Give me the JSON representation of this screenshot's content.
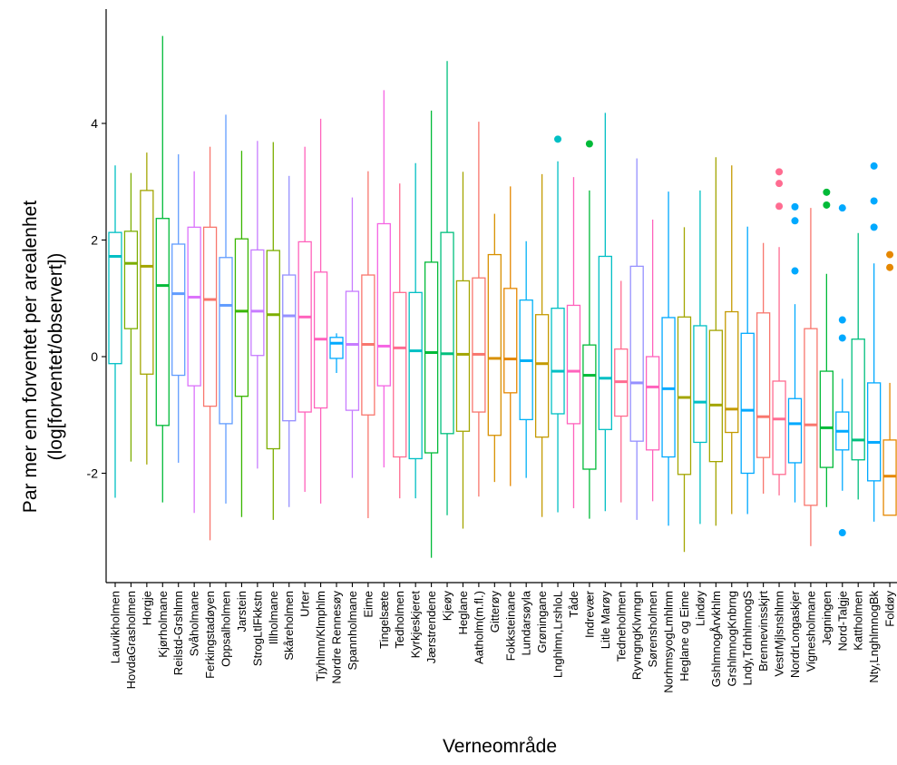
{
  "chart_data": {
    "type": "boxplot",
    "title": "",
    "xlabel": "Verneområde",
    "ylabel_line1": "Par mer enn forventet per arealenhet",
    "ylabel_line2": "(log[forventet/observert])",
    "ylim": [
      -3.85,
      5.9
    ],
    "yticks": [
      -2,
      0,
      2,
      4
    ],
    "ytick_labels": [
      "-2",
      "0",
      "2",
      "4"
    ],
    "legend": "none",
    "grid": false,
    "groups": [
      {
        "name": "Lauvikholmen",
        "color": "#F8766D",
        "stroke": "#00BFC4",
        "min": -2.42,
        "q1": -0.12,
        "median": 1.72,
        "q3": 2.13,
        "max": 3.28,
        "outliers": []
      },
      {
        "name": "HovdaGrasholmen",
        "color": "#7CAE00",
        "min": -1.8,
        "q1": 0.48,
        "median": 1.6,
        "q3": 2.15,
        "max": 3.15,
        "outliers": []
      },
      {
        "name": "Horgje",
        "color": "#A3A500",
        "min": -1.85,
        "q1": -0.3,
        "median": 1.55,
        "q3": 2.85,
        "max": 3.5,
        "outliers": []
      },
      {
        "name": "Kjørholmane",
        "color": "#00BA38",
        "min": -2.5,
        "q1": -1.18,
        "median": 1.22,
        "q3": 2.37,
        "max": 5.5,
        "outliers": []
      },
      {
        "name": "Reilstd-Grshlmn",
        "color": "#619CFF",
        "min": -1.82,
        "q1": -0.32,
        "median": 1.08,
        "q3": 1.93,
        "max": 3.47,
        "outliers": []
      },
      {
        "name": "Svåholmane",
        "color": "#DB72FB",
        "min": -2.68,
        "q1": -0.5,
        "median": 1.02,
        "q3": 2.22,
        "max": 3.18,
        "outliers": []
      },
      {
        "name": "Ferkingstadøyen",
        "color": "#F8766D",
        "min": -3.15,
        "q1": -0.85,
        "median": 0.98,
        "q3": 2.22,
        "max": 3.6,
        "outliers": []
      },
      {
        "name": "Oppsalholmen",
        "color": "#619CFF",
        "min": -2.52,
        "q1": -1.15,
        "median": 0.88,
        "q3": 1.7,
        "max": 4.15,
        "outliers": []
      },
      {
        "name": "Jarstein",
        "color": "#39B600",
        "min": -2.75,
        "q1": -0.68,
        "median": 0.78,
        "q3": 2.02,
        "max": 3.53,
        "outliers": []
      },
      {
        "name": "StrogLtlFkkstn",
        "color": "#C77CFF",
        "min": -1.92,
        "q1": 0.02,
        "median": 0.78,
        "q3": 1.83,
        "max": 3.7,
        "outliers": []
      },
      {
        "name": "Illholmane",
        "color": "#7CAE00",
        "min": -2.8,
        "q1": -1.58,
        "median": 0.72,
        "q3": 1.82,
        "max": 3.68,
        "outliers": []
      },
      {
        "name": "Skåreholmen",
        "color": "#9590FF",
        "min": -2.58,
        "q1": -1.1,
        "median": 0.7,
        "q3": 1.4,
        "max": 3.1,
        "outliers": []
      },
      {
        "name": "Urter",
        "color": "#FF62BC",
        "min": -2.32,
        "q1": -0.95,
        "median": 0.68,
        "q3": 1.97,
        "max": 3.6,
        "outliers": []
      },
      {
        "name": "Tjyhlmn/Klmphlm",
        "color": "#FF62BC",
        "min": -2.52,
        "q1": -0.88,
        "median": 0.3,
        "q3": 1.45,
        "max": 4.08,
        "outliers": []
      },
      {
        "name": "Nordre Rennesøy",
        "color": "#00A9FF",
        "min": -0.28,
        "q1": -0.03,
        "median": 0.23,
        "q3": 0.33,
        "max": 0.4,
        "outliers": []
      },
      {
        "name": "Spannholmane",
        "color": "#C77CFF",
        "min": -2.08,
        "q1": -0.92,
        "median": 0.21,
        "q3": 1.12,
        "max": 2.73,
        "outliers": []
      },
      {
        "name": "Eime",
        "color": "#F8766D",
        "min": -2.77,
        "q1": -1.0,
        "median": 0.21,
        "q3": 1.4,
        "max": 3.18,
        "outliers": []
      },
      {
        "name": "Tingelsæte",
        "color": "#F564E3",
        "min": -1.9,
        "q1": -0.5,
        "median": 0.18,
        "q3": 2.28,
        "max": 4.57,
        "outliers": []
      },
      {
        "name": "Tedholmen",
        "color": "#FF6C91",
        "min": -2.43,
        "q1": -1.72,
        "median": 0.15,
        "q3": 1.1,
        "max": 2.97,
        "outliers": []
      },
      {
        "name": "Kyrkjeskjeret",
        "color": "#00BFC4",
        "min": -2.43,
        "q1": -1.75,
        "median": 0.1,
        "q3": 1.1,
        "max": 3.32,
        "outliers": []
      },
      {
        "name": "Jærstrendene",
        "color": "#00BA38",
        "min": -3.45,
        "q1": -1.65,
        "median": 0.07,
        "q3": 1.62,
        "max": 4.22,
        "outliers": []
      },
      {
        "name": "Kjeøy",
        "color": "#00BF7D",
        "min": -2.72,
        "q1": -1.32,
        "median": 0.05,
        "q3": 2.13,
        "max": 5.07,
        "outliers": []
      },
      {
        "name": "Heglane",
        "color": "#A3A500",
        "min": -2.95,
        "q1": -1.28,
        "median": 0.04,
        "q3": 1.3,
        "max": 3.17,
        "outliers": []
      },
      {
        "name": "Aatholm(m.fl.)",
        "color": "#F8766D",
        "min": -2.4,
        "q1": -0.95,
        "median": 0.04,
        "q3": 1.35,
        "max": 4.03,
        "outliers": []
      },
      {
        "name": "Gitterøy",
        "color": "#D89000",
        "min": -2.15,
        "q1": -1.35,
        "median": -0.03,
        "q3": 1.75,
        "max": 2.45,
        "outliers": []
      },
      {
        "name": "Fokksteinane",
        "color": "#E58700",
        "min": -2.22,
        "q1": -0.62,
        "median": -0.04,
        "q3": 1.17,
        "max": 2.92,
        "outliers": []
      },
      {
        "name": "Lundarsøyla",
        "color": "#00B0F6",
        "min": -2.08,
        "q1": -1.08,
        "median": -0.07,
        "q3": 0.97,
        "max": 1.98,
        "outliers": []
      },
      {
        "name": "Grøningane",
        "color": "#C49A00",
        "min": -2.75,
        "q1": -1.38,
        "median": -0.12,
        "q3": 0.72,
        "max": 3.13,
        "outliers": []
      },
      {
        "name": "Lnghlmn,LrshloL",
        "color": "#00BFC4",
        "min": -2.67,
        "q1": -0.98,
        "median": -0.25,
        "q3": 0.83,
        "max": 3.35,
        "outliers": [
          3.73
        ]
      },
      {
        "name": "Tåde",
        "color": "#FF62BC",
        "min": -2.6,
        "q1": -1.15,
        "median": -0.25,
        "q3": 0.88,
        "max": 3.08,
        "outliers": []
      },
      {
        "name": "Indrevær",
        "color": "#00BA38",
        "min": -2.78,
        "q1": -1.93,
        "median": -0.32,
        "q3": 0.2,
        "max": 2.85,
        "outliers": [
          3.65
        ]
      },
      {
        "name": "Litle Marøy",
        "color": "#00BFC4",
        "min": -2.65,
        "q1": -1.25,
        "median": -0.37,
        "q3": 1.72,
        "max": 4.18,
        "outliers": []
      },
      {
        "name": "Tedneholmen",
        "color": "#FF6C91",
        "min": -2.5,
        "q1": -1.02,
        "median": -0.43,
        "q3": 0.13,
        "max": 1.3,
        "outliers": []
      },
      {
        "name": "RyvngngKlvnngn",
        "color": "#9590FF",
        "min": -2.8,
        "q1": -1.45,
        "median": -0.45,
        "q3": 1.55,
        "max": 3.4,
        "outliers": []
      },
      {
        "name": "Sørensholmen",
        "color": "#FF62BC",
        "min": -2.48,
        "q1": -1.6,
        "median": -0.52,
        "q3": 0.0,
        "max": 2.35,
        "outliers": []
      },
      {
        "name": "NorhmsyogLmhlmn",
        "color": "#00A9FF",
        "min": -2.9,
        "q1": -1.72,
        "median": -0.55,
        "q3": 0.67,
        "max": 2.83,
        "outliers": []
      },
      {
        "name": "Heglane og Eime",
        "color": "#A3A500",
        "min": -3.35,
        "q1": -2.02,
        "median": -0.7,
        "q3": 0.68,
        "max": 2.22,
        "outliers": []
      },
      {
        "name": "Lindøy",
        "color": "#00BFC4",
        "min": -2.87,
        "q1": -1.47,
        "median": -0.78,
        "q3": 0.53,
        "max": 2.85,
        "outliers": []
      },
      {
        "name": "GshlmnogÅrvkhlm",
        "color": "#A3A500",
        "min": -2.9,
        "q1": -1.8,
        "median": -0.83,
        "q3": 0.45,
        "max": 3.42,
        "outliers": []
      },
      {
        "name": "GrshlmnogKnbrng",
        "color": "#C49A00",
        "min": -2.7,
        "q1": -1.3,
        "median": -0.9,
        "q3": 0.77,
        "max": 3.28,
        "outliers": []
      },
      {
        "name": "Lndy,TdnhlmnogS",
        "color": "#00A9FF",
        "min": -2.7,
        "q1": -2.0,
        "median": -0.92,
        "q3": 0.4,
        "max": 2.23,
        "outliers": []
      },
      {
        "name": "Brennevinsskjrt",
        "color": "#F8766D",
        "min": -2.35,
        "q1": -1.73,
        "median": -1.03,
        "q3": 0.75,
        "max": 1.95,
        "outliers": []
      },
      {
        "name": "VestrMjlsnshlmn",
        "color": "#FF6C91",
        "min": -2.38,
        "q1": -2.02,
        "median": -1.07,
        "q3": -0.42,
        "max": 1.88,
        "outliers": [
          2.58,
          2.97,
          3.17
        ]
      },
      {
        "name": "NordrLongaskjer",
        "color": "#00A9FF",
        "min": -2.5,
        "q1": -1.82,
        "median": -1.15,
        "q3": -0.72,
        "max": 0.9,
        "outliers": [
          1.47,
          2.33,
          2.57
        ]
      },
      {
        "name": "Vignesholmane",
        "color": "#F8766D",
        "min": -3.25,
        "q1": -2.55,
        "median": -1.17,
        "q3": 0.48,
        "max": 2.55,
        "outliers": []
      },
      {
        "name": "Jegningen",
        "color": "#00BA38",
        "min": -2.58,
        "q1": -1.9,
        "median": -1.22,
        "q3": -0.25,
        "max": 1.42,
        "outliers": [
          2.6,
          2.82
        ]
      },
      {
        "name": "Nord-Talgje",
        "color": "#00A9FF",
        "min": -2.3,
        "q1": -1.6,
        "median": -1.28,
        "q3": -0.95,
        "max": -0.38,
        "outliers": [
          -3.02,
          0.32,
          0.63,
          2.55
        ]
      },
      {
        "name": "Kattholmen",
        "color": "#00BF7D",
        "min": -2.45,
        "q1": -1.77,
        "median": -1.43,
        "q3": 0.3,
        "max": 2.12,
        "outliers": []
      },
      {
        "name": "Nty,LnghlmnogBk",
        "color": "#00A9FF",
        "min": -2.83,
        "q1": -2.13,
        "median": -1.47,
        "q3": -0.45,
        "max": 1.6,
        "outliers": [
          2.22,
          2.67,
          3.27
        ]
      },
      {
        "name": "Foldøy",
        "color": "#E58700",
        "min": -2.72,
        "q1": -2.72,
        "median": -2.05,
        "q3": -1.43,
        "max": -0.45,
        "outliers": [
          1.53,
          1.75
        ]
      }
    ]
  }
}
